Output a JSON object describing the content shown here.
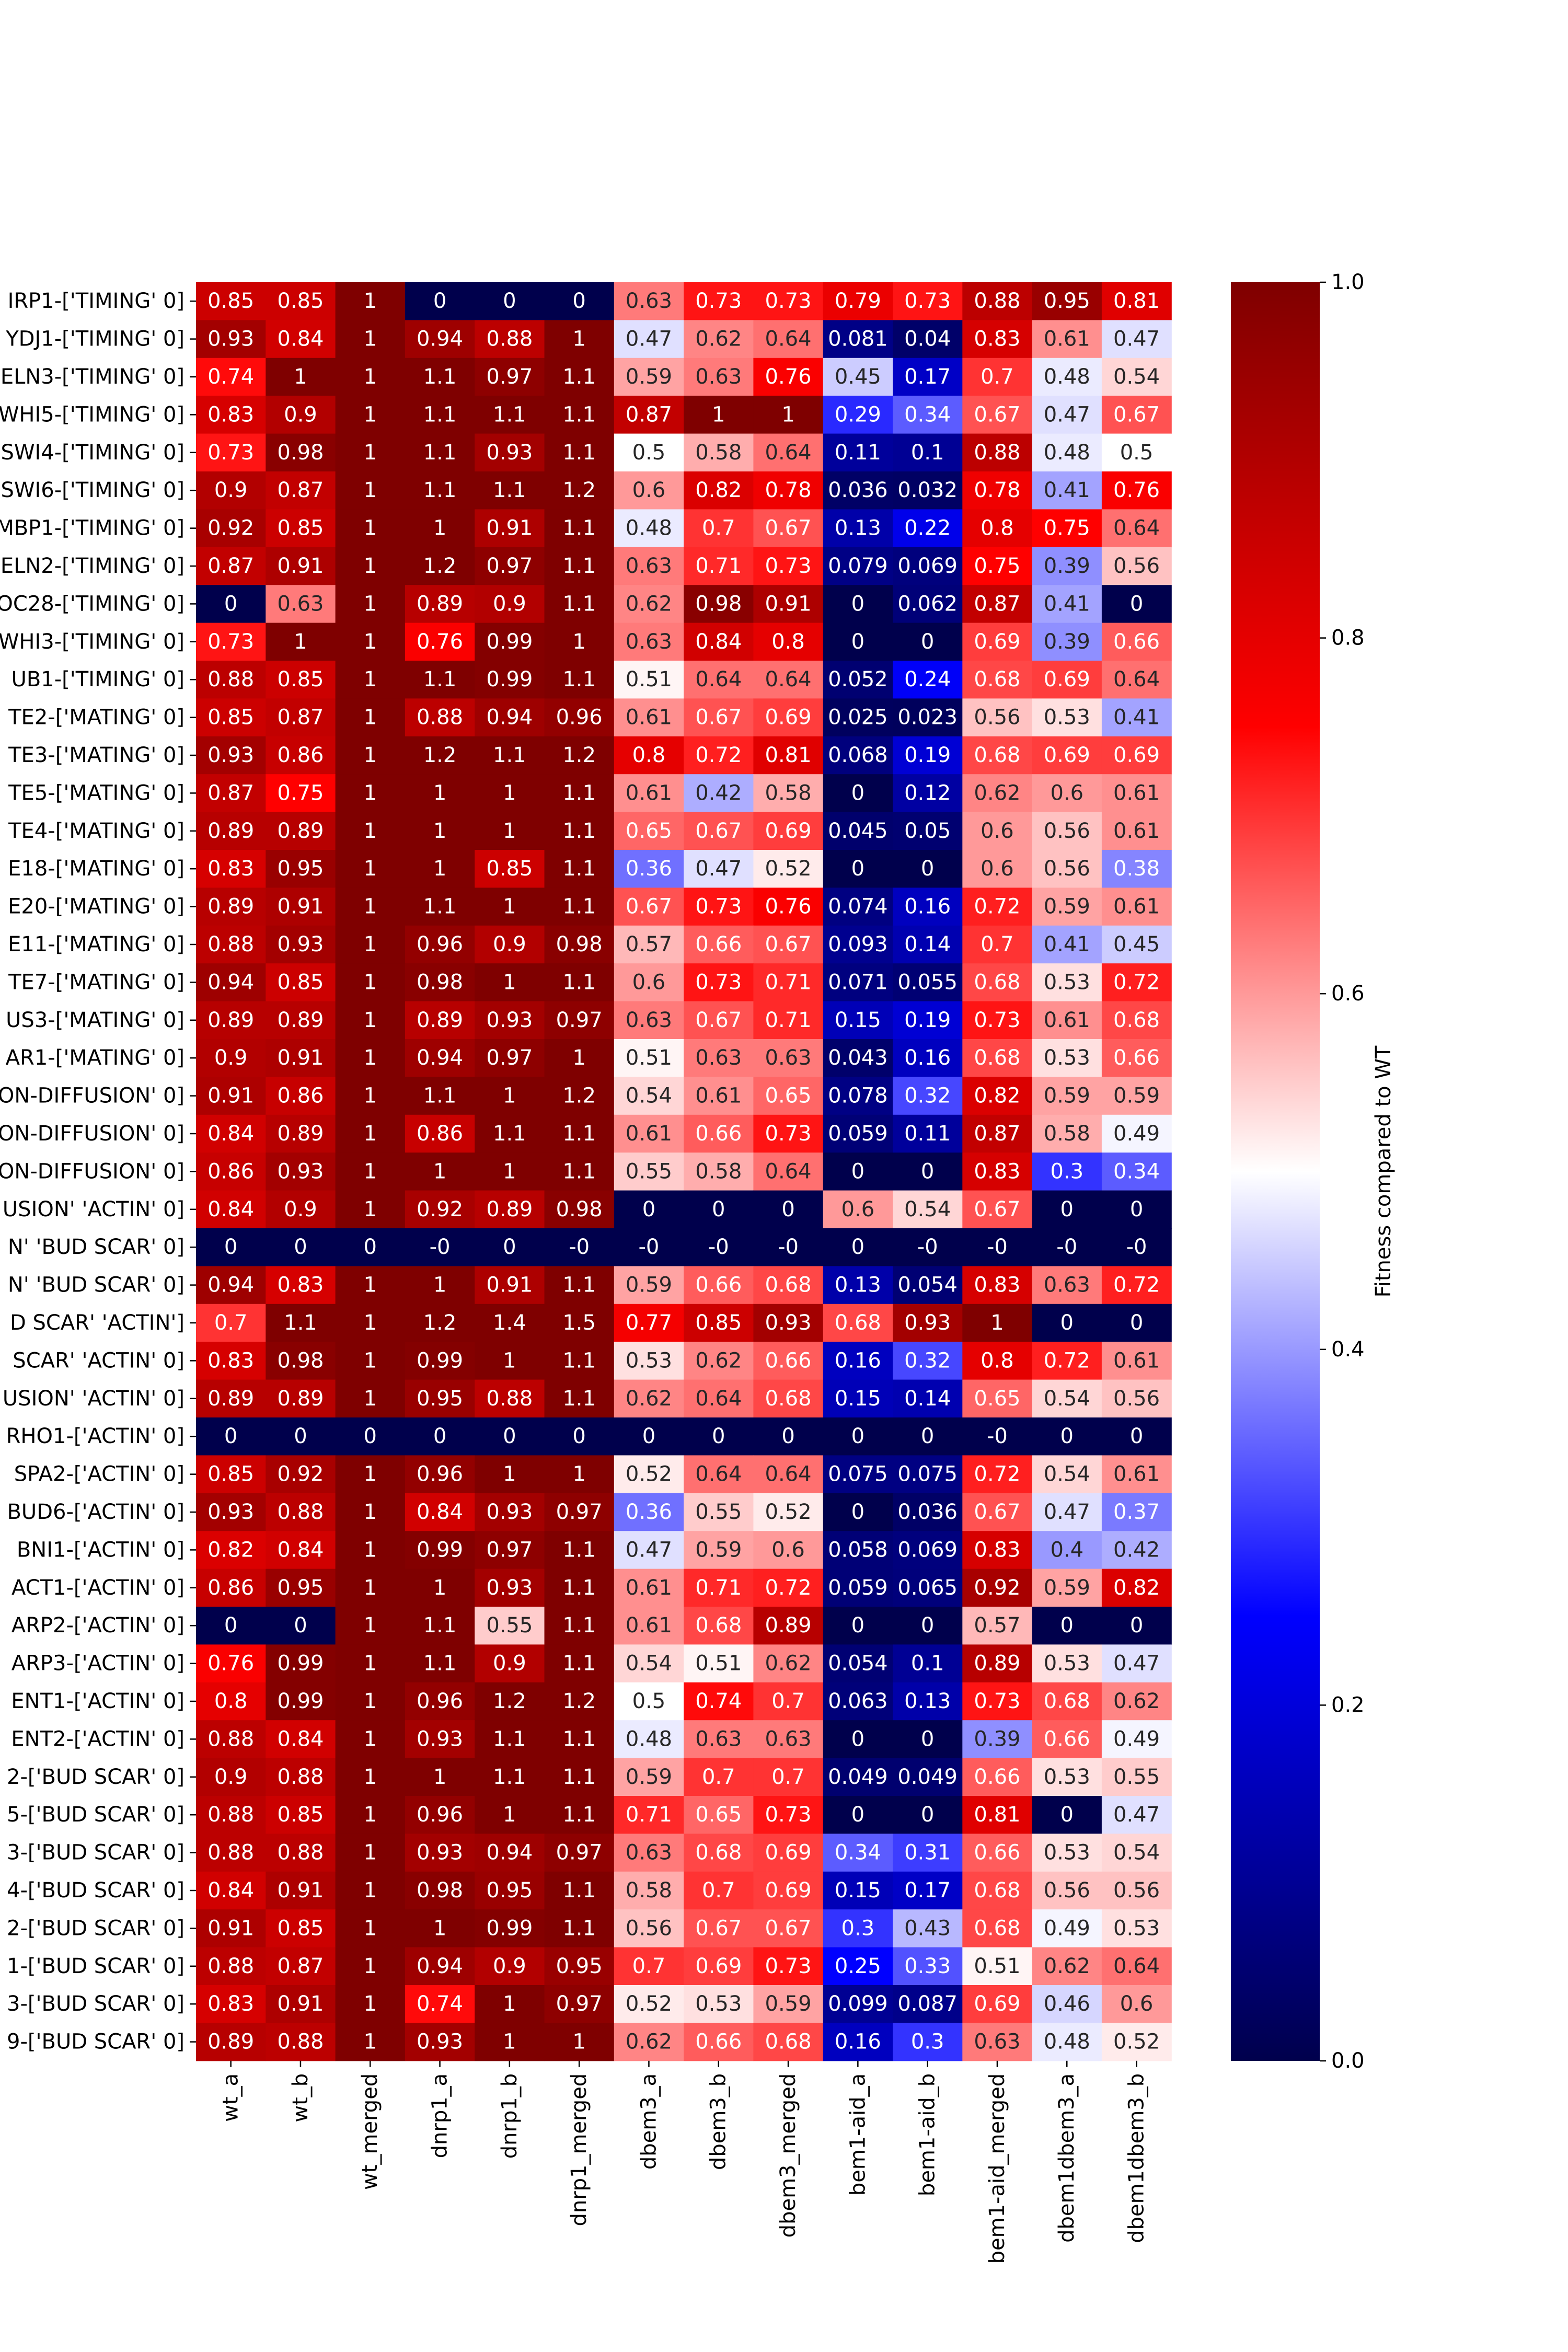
{
  "chart_data": {
    "type": "heatmap",
    "title": "",
    "xlabel": "",
    "ylabel": "",
    "colorbar": {
      "label": "Fitness compared to WT",
      "range": [
        0.0,
        1.0
      ],
      "ticks": [
        "0.0",
        "0.2",
        "0.4",
        "0.6",
        "0.8",
        "1.0"
      ],
      "colormap": "seismic",
      "colors": {
        "low": "#00004c",
        "mid": "#ffffff",
        "high": "#7f0000"
      }
    },
    "columns": [
      "wt_a",
      "wt_b",
      "wt_merged",
      "dnrp1_a",
      "dnrp1_b",
      "dnrp1_merged",
      "dbem3_a",
      "dbem3_b",
      "dbem3_merged",
      "bem1-aid_a",
      "bem1-aid_b",
      "bem1-aid_merged",
      "dbem1dbem3_a",
      "dbem1dbem3_b"
    ],
    "rows": [
      "IRP1-['TIMING' 0]",
      "YDJ1-['TIMING' 0]",
      "ELN3-['TIMING' 0]",
      "WHI5-['TIMING' 0]",
      "SWI4-['TIMING' 0]",
      "SWI6-['TIMING' 0]",
      "MBP1-['TIMING' 0]",
      "ELN2-['TIMING' 0]",
      "OC28-['TIMING' 0]",
      "WHI3-['TIMING' 0]",
      "UB1-['TIMING' 0]",
      "TE2-['MATING' 0]",
      "TE3-['MATING' 0]",
      "TE5-['MATING' 0]",
      "TE4-['MATING' 0]",
      "E18-['MATING' 0]",
      "E20-['MATING' 0]",
      "E11-['MATING' 0]",
      "TE7-['MATING' 0]",
      "US3-['MATING' 0]",
      "AR1-['MATING' 0]",
      "ON-DIFFUSION' 0]",
      "ON-DIFFUSION' 0]",
      "ON-DIFFUSION' 0]",
      "USION' 'ACTIN' 0]",
      "N' 'BUD SCAR' 0]",
      "N' 'BUD SCAR' 0]",
      "D SCAR' 'ACTIN']",
      "SCAR' 'ACTIN' 0]",
      "USION' 'ACTIN' 0]",
      "RHO1-['ACTIN' 0]",
      "SPA2-['ACTIN' 0]",
      "BUD6-['ACTIN' 0]",
      "BNI1-['ACTIN' 0]",
      "ACT1-['ACTIN' 0]",
      "ARP2-['ACTIN' 0]",
      "ARP3-['ACTIN' 0]",
      "ENT1-['ACTIN' 0]",
      "ENT2-['ACTIN' 0]",
      "2-['BUD SCAR' 0]",
      "5-['BUD SCAR' 0]",
      "3-['BUD SCAR' 0]",
      "4-['BUD SCAR' 0]",
      "2-['BUD SCAR' 0]",
      "1-['BUD SCAR' 0]",
      "3-['BUD SCAR' 0]",
      "9-['BUD SCAR' 0]"
    ],
    "values": [
      [
        0.85,
        0.85,
        1,
        0,
        0,
        0,
        0.63,
        0.73,
        0.73,
        0.79,
        0.73,
        0.88,
        0.95,
        0.81
      ],
      [
        0.93,
        0.84,
        1,
        0.94,
        0.88,
        1,
        0.47,
        0.62,
        0.64,
        0.081,
        0.04,
        0.83,
        0.61,
        0.47
      ],
      [
        0.74,
        1,
        1,
        1.1,
        0.97,
        1.1,
        0.59,
        0.63,
        0.76,
        0.45,
        0.17,
        0.7,
        0.48,
        0.54
      ],
      [
        0.83,
        0.9,
        1,
        1.1,
        1.1,
        1.1,
        0.87,
        1,
        1,
        0.29,
        0.34,
        0.67,
        0.47,
        0.67
      ],
      [
        0.73,
        0.98,
        1,
        1.1,
        0.93,
        1.1,
        0.5,
        0.58,
        0.64,
        0.11,
        0.1,
        0.88,
        0.48,
        0.5
      ],
      [
        0.9,
        0.87,
        1,
        1.1,
        1.1,
        1.2,
        0.6,
        0.82,
        0.78,
        0.036,
        0.032,
        0.78,
        0.41,
        0.76
      ],
      [
        0.92,
        0.85,
        1,
        1,
        0.91,
        1.1,
        0.48,
        0.7,
        0.67,
        0.13,
        0.22,
        0.8,
        0.75,
        0.64
      ],
      [
        0.87,
        0.91,
        1,
        1.2,
        0.97,
        1.1,
        0.63,
        0.71,
        0.73,
        0.079,
        0.069,
        0.75,
        0.39,
        0.56
      ],
      [
        0,
        0.63,
        1,
        0.89,
        0.9,
        1.1,
        0.62,
        0.98,
        0.91,
        0,
        0.062,
        0.87,
        0.41,
        0
      ],
      [
        0.73,
        1,
        1,
        0.76,
        0.99,
        1,
        0.63,
        0.84,
        0.8,
        0,
        0,
        0.69,
        0.39,
        0.66
      ],
      [
        0.88,
        0.85,
        1,
        1.1,
        0.99,
        1.1,
        0.51,
        0.64,
        0.64,
        0.052,
        0.24,
        0.68,
        0.69,
        0.64
      ],
      [
        0.85,
        0.87,
        1,
        0.88,
        0.94,
        0.96,
        0.61,
        0.67,
        0.69,
        0.025,
        0.023,
        0.56,
        0.53,
        0.41
      ],
      [
        0.93,
        0.86,
        1,
        1.2,
        1.1,
        1.2,
        0.8,
        0.72,
        0.81,
        0.068,
        0.19,
        0.68,
        0.69,
        0.69
      ],
      [
        0.87,
        0.75,
        1,
        1,
        1,
        1.1,
        0.61,
        0.42,
        0.58,
        0,
        0.12,
        0.62,
        0.6,
        0.61
      ],
      [
        0.89,
        0.89,
        1,
        1,
        1,
        1.1,
        0.65,
        0.67,
        0.69,
        0.045,
        0.05,
        0.6,
        0.56,
        0.61
      ],
      [
        0.83,
        0.95,
        1,
        1,
        0.85,
        1.1,
        0.36,
        0.47,
        0.52,
        0,
        0,
        0.6,
        0.56,
        0.38
      ],
      [
        0.89,
        0.91,
        1,
        1.1,
        1,
        1.1,
        0.67,
        0.73,
        0.76,
        0.074,
        0.16,
        0.72,
        0.59,
        0.61
      ],
      [
        0.88,
        0.93,
        1,
        0.96,
        0.9,
        0.98,
        0.57,
        0.66,
        0.67,
        0.093,
        0.14,
        0.7,
        0.41,
        0.45
      ],
      [
        0.94,
        0.85,
        1,
        0.98,
        1,
        1.1,
        0.6,
        0.73,
        0.71,
        0.071,
        0.055,
        0.68,
        0.53,
        0.72
      ],
      [
        0.89,
        0.89,
        1,
        0.89,
        0.93,
        0.97,
        0.63,
        0.67,
        0.71,
        0.15,
        0.19,
        0.73,
        0.61,
        0.68
      ],
      [
        0.9,
        0.91,
        1,
        0.94,
        0.97,
        1,
        0.51,
        0.63,
        0.63,
        0.043,
        0.16,
        0.68,
        0.53,
        0.66
      ],
      [
        0.91,
        0.86,
        1,
        1.1,
        1,
        1.2,
        0.54,
        0.61,
        0.65,
        0.078,
        0.32,
        0.82,
        0.59,
        0.59
      ],
      [
        0.84,
        0.89,
        1,
        0.86,
        1.1,
        1.1,
        0.61,
        0.66,
        0.73,
        0.059,
        0.11,
        0.87,
        0.58,
        0.49
      ],
      [
        0.86,
        0.93,
        1,
        1,
        1,
        1.1,
        0.55,
        0.58,
        0.64,
        0,
        0,
        0.83,
        0.3,
        0.34
      ],
      [
        0.84,
        0.9,
        1,
        0.92,
        0.89,
        0.98,
        0,
        0,
        0,
        0.6,
        0.54,
        0.67,
        0,
        0
      ],
      [
        0,
        0,
        0,
        0,
        0,
        0,
        0,
        0,
        0,
        0,
        0,
        0,
        0,
        0
      ],
      [
        0.94,
        0.83,
        1,
        1,
        0.91,
        1.1,
        0.59,
        0.66,
        0.68,
        0.13,
        0.054,
        0.83,
        0.63,
        0.72
      ],
      [
        0.7,
        1.1,
        1,
        1.2,
        1.4,
        1.5,
        0.77,
        0.85,
        0.93,
        0.68,
        0.93,
        1,
        0,
        0
      ],
      [
        0.83,
        0.98,
        1,
        0.99,
        1,
        1.1,
        0.53,
        0.62,
        0.66,
        0.16,
        0.32,
        0.8,
        0.72,
        0.61
      ],
      [
        0.89,
        0.89,
        1,
        0.95,
        0.88,
        1.1,
        0.62,
        0.64,
        0.68,
        0.15,
        0.14,
        0.65,
        0.54,
        0.56
      ],
      [
        0,
        0,
        0,
        0,
        0,
        0,
        0,
        0,
        0,
        0,
        0,
        0,
        0,
        0
      ],
      [
        0.85,
        0.92,
        1,
        0.96,
        1,
        1,
        0.52,
        0.64,
        0.64,
        0.075,
        0.075,
        0.72,
        0.54,
        0.61
      ],
      [
        0.93,
        0.88,
        1,
        0.84,
        0.93,
        0.97,
        0.36,
        0.55,
        0.52,
        0,
        0.036,
        0.67,
        0.47,
        0.37
      ],
      [
        0.82,
        0.84,
        1,
        0.99,
        0.97,
        1.1,
        0.47,
        0.59,
        0.6,
        0.058,
        0.069,
        0.83,
        0.4,
        0.42
      ],
      [
        0.86,
        0.95,
        1,
        1,
        0.93,
        1.1,
        0.61,
        0.71,
        0.72,
        0.059,
        0.065,
        0.92,
        0.59,
        0.82
      ],
      [
        0,
        0,
        1,
        1.1,
        0.55,
        1.1,
        0.61,
        0.68,
        0.89,
        0,
        0,
        0.57,
        0,
        0
      ],
      [
        0.76,
        0.99,
        1,
        1.1,
        0.9,
        1.1,
        0.54,
        0.51,
        0.62,
        0.054,
        0.1,
        0.89,
        0.53,
        0.47
      ],
      [
        0.8,
        0.99,
        1,
        0.96,
        1.2,
        1.2,
        0.5,
        0.74,
        0.7,
        0.063,
        0.13,
        0.73,
        0.68,
        0.62
      ],
      [
        0.88,
        0.84,
        1,
        0.93,
        1.1,
        1.1,
        0.48,
        0.63,
        0.63,
        0,
        0,
        0.39,
        0.66,
        0.49
      ],
      [
        0.9,
        0.88,
        1,
        1,
        1.1,
        1.1,
        0.59,
        0.7,
        0.7,
        0.049,
        0.049,
        0.66,
        0.53,
        0.55
      ],
      [
        0.88,
        0.85,
        1,
        0.96,
        1,
        1.1,
        0.71,
        0.65,
        0.73,
        0,
        0,
        0.81,
        0,
        0.47
      ],
      [
        0.88,
        0.88,
        1,
        0.93,
        0.94,
        0.97,
        0.63,
        0.68,
        0.69,
        0.34,
        0.31,
        0.66,
        0.53,
        0.54
      ],
      [
        0.84,
        0.91,
        1,
        0.98,
        0.95,
        1.1,
        0.58,
        0.7,
        0.69,
        0.15,
        0.17,
        0.68,
        0.56,
        0.56
      ],
      [
        0.91,
        0.85,
        1,
        1,
        0.99,
        1.1,
        0.56,
        0.67,
        0.67,
        0.3,
        0.43,
        0.68,
        0.49,
        0.53
      ],
      [
        0.88,
        0.87,
        1,
        0.94,
        0.9,
        0.95,
        0.7,
        0.69,
        0.73,
        0.25,
        0.33,
        0.51,
        0.62,
        0.64
      ],
      [
        0.83,
        0.91,
        1,
        0.74,
        1,
        0.97,
        0.52,
        0.53,
        0.59,
        0.099,
        0.087,
        0.69,
        0.46,
        0.6
      ],
      [
        0.89,
        0.88,
        1,
        0.93,
        1,
        1,
        0.62,
        0.66,
        0.68,
        0.16,
        0.3,
        0.63,
        0.48,
        0.52
      ]
    ]
  }
}
